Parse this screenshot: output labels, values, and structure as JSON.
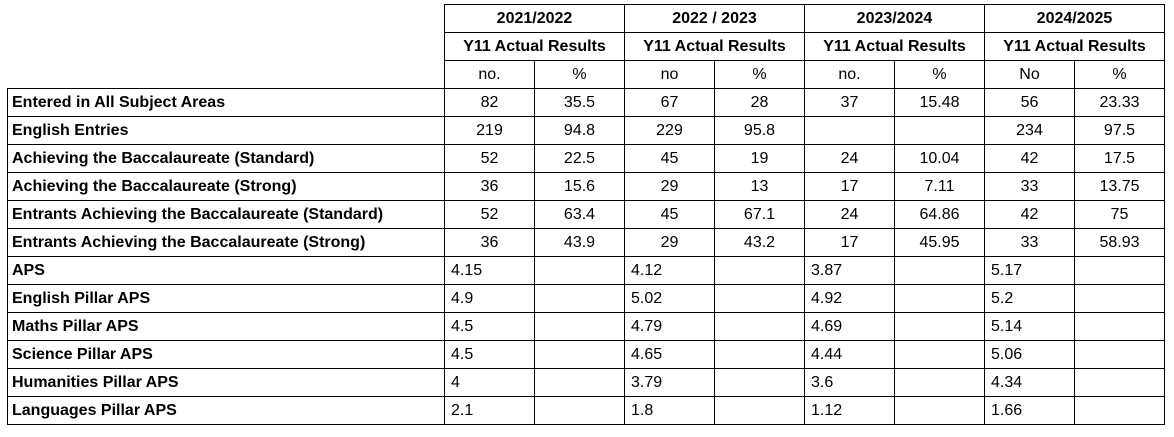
{
  "header": {
    "years": [
      "2021/2022",
      "2022 / 2023",
      "2023/2024",
      "2024/2025"
    ],
    "subtitles": [
      "Y11 Actual Results",
      "Y11 Actual Results",
      "Y11 Actual Results",
      "Y11 Actual Results"
    ],
    "units": [
      "no.",
      "%",
      "no",
      "%",
      "no.",
      "%",
      "No",
      "%"
    ]
  },
  "table": {
    "rows": [
      {
        "label": "Entered in All Subject Areas",
        "cells": [
          82,
          35.5,
          67,
          28,
          37,
          15.48,
          56,
          23.33
        ]
      },
      {
        "label": "English Entries",
        "cells": [
          219,
          94.8,
          229,
          95.8,
          null,
          null,
          234,
          97.5
        ]
      },
      {
        "label": "Achieving the Baccalaureate (Standard)",
        "cells": [
          52,
          22.5,
          45,
          19,
          24,
          10.04,
          42,
          17.5
        ]
      },
      {
        "label": "Achieving the Baccalaureate (Strong)",
        "cells": [
          36,
          15.6,
          29,
          13,
          17,
          7.11,
          33,
          13.75
        ]
      },
      {
        "label": "Entrants Achieving the Baccalaureate (Standard)",
        "cells": [
          52,
          63.4,
          45,
          67.1,
          24,
          64.86,
          42,
          75
        ]
      },
      {
        "label": "Entrants Achieving the Baccalaureate (Strong)",
        "cells": [
          36,
          43.9,
          29,
          43.2,
          17,
          45.95,
          33,
          58.93
        ]
      },
      {
        "label": "APS",
        "cells": [
          4.15,
          null,
          4.12,
          null,
          3.87,
          null,
          5.17,
          null
        ]
      },
      {
        "label": "English Pillar APS",
        "cells": [
          4.9,
          null,
          5.02,
          null,
          4.92,
          null,
          5.2,
          null
        ]
      },
      {
        "label": "Maths Pillar APS",
        "cells": [
          4.5,
          null,
          4.79,
          null,
          4.69,
          null,
          5.14,
          null
        ]
      },
      {
        "label": "Science Pillar APS",
        "cells": [
          4.5,
          null,
          4.65,
          null,
          4.44,
          null,
          5.06,
          null
        ]
      },
      {
        "label": "Humanities Pillar APS",
        "cells": [
          4,
          null,
          3.79,
          null,
          3.6,
          null,
          4.34,
          null
        ]
      },
      {
        "label": "Languages Pillar APS",
        "cells": [
          2.1,
          null,
          1.8,
          null,
          1.12,
          null,
          1.66,
          null
        ]
      }
    ]
  }
}
